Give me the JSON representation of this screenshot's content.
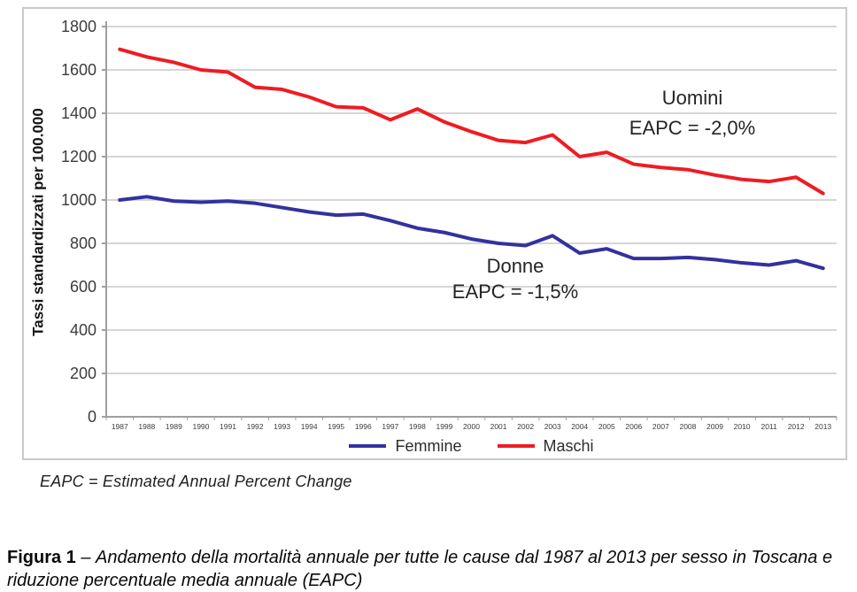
{
  "chart_data": {
    "type": "line",
    "title": "",
    "xlabel": "",
    "ylabel": "Tassi standardizzati per 100.000",
    "ylim": [
      0,
      1800
    ],
    "ytick_step": 200,
    "grid": true,
    "legend_position": "bottom",
    "x": [
      1987,
      1988,
      1989,
      1990,
      1991,
      1992,
      1993,
      1994,
      1995,
      1996,
      1997,
      1998,
      1999,
      2000,
      2001,
      2002,
      2003,
      2004,
      2005,
      2006,
      2007,
      2008,
      2009,
      2010,
      2011,
      2012,
      2013
    ],
    "series": [
      {
        "name": "Femmine",
        "color": "#32329e",
        "values": [
          1000,
          1015,
          995,
          990,
          995,
          985,
          965,
          945,
          930,
          935,
          905,
          870,
          850,
          820,
          800,
          790,
          835,
          755,
          775,
          730,
          730,
          735,
          725,
          710,
          700,
          720,
          685
        ]
      },
      {
        "name": "Maschi",
        "color": "#ee1c23",
        "values": [
          1695,
          1660,
          1635,
          1600,
          1590,
          1520,
          1510,
          1475,
          1430,
          1425,
          1370,
          1420,
          1360,
          1315,
          1275,
          1265,
          1300,
          1200,
          1220,
          1165,
          1150,
          1140,
          1115,
          1095,
          1085,
          1105,
          1030
        ]
      }
    ],
    "colors": {
      "grid": "#d6d6d6",
      "axis": "#9f9fa0",
      "tick_text": "#3c3c3c"
    }
  },
  "annotations": {
    "males_label": "Uomini",
    "males_eapc": "EAPC = -2,0%",
    "females_label": "Donne",
    "females_eapc": "EAPC = -1,5%"
  },
  "footnote": "EAPC = Estimated Annual Percent Change",
  "caption": {
    "label": "Figura 1",
    "separator": " – ",
    "text": "Andamento della mortalità annuale per tutte le cause dal 1987 al 2013 per sesso in Toscana e riduzione percentuale media annuale (EAPC)"
  }
}
